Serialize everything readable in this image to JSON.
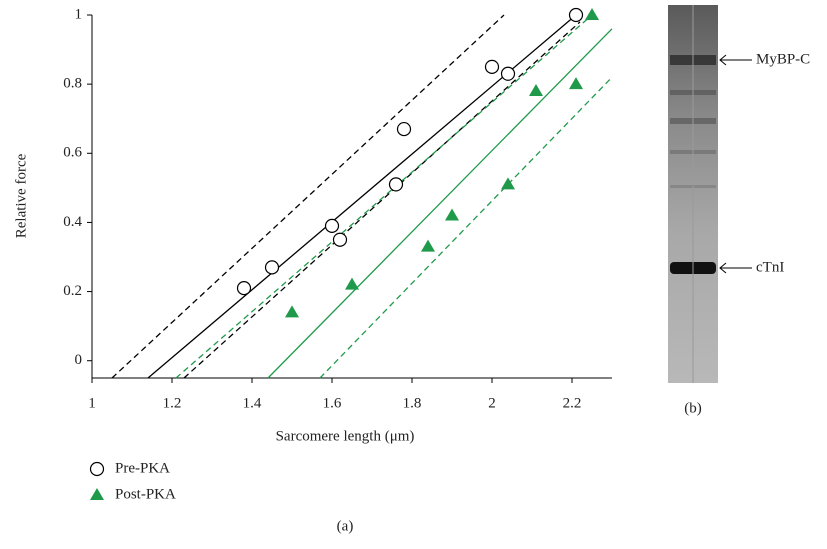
{
  "chart_data": {
    "type": "scatter",
    "xlabel": "Sarcomere length (μm)",
    "ylabel": "Relative force",
    "panel_label": "(a)",
    "xlim": [
      1,
      2.3
    ],
    "ylim": [
      -0.05,
      1
    ],
    "xticks": [
      1,
      1.2,
      1.4,
      1.6,
      1.8,
      2,
      2.2
    ],
    "yticks": [
      0,
      0.2,
      0.4,
      0.6,
      0.8,
      1
    ],
    "series": [
      {
        "name": "Pre-PKA",
        "kind": "scatter",
        "marker": "circle",
        "color": "#000000",
        "x": [
          1.38,
          1.45,
          1.6,
          1.62,
          1.76,
          1.78,
          2.0,
          2.04,
          2.21
        ],
        "values": [
          0.21,
          0.27,
          0.39,
          0.35,
          0.51,
          0.67,
          0.85,
          0.83,
          1.0
        ]
      },
      {
        "name": "Post-PKA",
        "kind": "scatter",
        "marker": "triangle",
        "color": "#1f9a4a",
        "x": [
          1.5,
          1.65,
          1.84,
          1.9,
          2.04,
          2.11,
          2.21,
          2.25
        ],
        "values": [
          0.14,
          0.22,
          0.33,
          0.42,
          0.51,
          0.78,
          0.8,
          1.0
        ]
      },
      {
        "kind": "line",
        "dash": false,
        "color": "#000000",
        "x": [
          1.14,
          2.21
        ],
        "values": [
          -0.05,
          1.0
        ]
      },
      {
        "kind": "line",
        "dash": true,
        "color": "#000000",
        "x": [
          1.05,
          2.03
        ],
        "values": [
          -0.05,
          1.0
        ]
      },
      {
        "kind": "line",
        "dash": true,
        "color": "#000000",
        "x": [
          1.23,
          2.22
        ],
        "values": [
          -0.05,
          0.98
        ]
      },
      {
        "kind": "line",
        "dash": false,
        "color": "#1f9a4a",
        "x": [
          1.44,
          2.3
        ],
        "values": [
          -0.05,
          0.96
        ]
      },
      {
        "kind": "line",
        "dash": true,
        "color": "#1f9a4a",
        "x": [
          1.21,
          2.25
        ],
        "values": [
          -0.05,
          1.0
        ]
      },
      {
        "kind": "line",
        "dash": true,
        "color": "#1f9a4a",
        "x": [
          1.57,
          2.3
        ],
        "values": [
          -0.05,
          0.82
        ]
      }
    ]
  },
  "gel": {
    "labels": [
      "MyBP-C",
      "cTnI"
    ],
    "panel_label": "(b)"
  }
}
